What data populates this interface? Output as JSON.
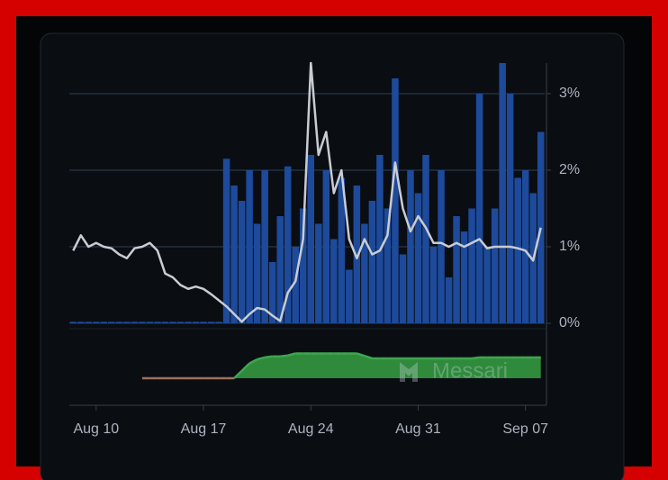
{
  "chart_data": {
    "type": "bar",
    "watermark": "Messari",
    "categories": [
      null,
      null,
      null,
      "Aug 10",
      null,
      null,
      null,
      null,
      null,
      null,
      null,
      null,
      null,
      null,
      null,
      null,
      null,
      "Aug 17",
      null,
      null,
      null,
      null,
      null,
      null,
      null,
      null,
      null,
      null,
      null,
      null,
      null,
      "Aug 24",
      null,
      null,
      null,
      null,
      null,
      null,
      null,
      null,
      null,
      null,
      null,
      null,
      null,
      "Aug 31",
      null,
      null,
      null,
      null,
      null,
      null,
      null,
      null,
      null,
      null,
      null,
      null,
      null,
      "Sep 07",
      null,
      null
    ],
    "ylim": [
      0,
      3.4
    ],
    "yticks": [
      {
        "value": 0,
        "label": "0%"
      },
      {
        "value": 1,
        "label": "1%"
      },
      {
        "value": 2,
        "label": "2%"
      },
      {
        "value": 3,
        "label": "3%"
      }
    ],
    "y2lim": [
      0,
      1
    ],
    "grid": true,
    "series": [
      {
        "type": "bar",
        "color": "#1d4a9b",
        "values": [
          0.02,
          0.02,
          0.02,
          0.02,
          0.02,
          0.02,
          0.02,
          0.02,
          0.02,
          0.02,
          0.02,
          0.02,
          0.02,
          0.02,
          0.02,
          0.02,
          0.02,
          0.02,
          0.02,
          0.02,
          2.15,
          1.8,
          1.6,
          2.0,
          1.3,
          2.0,
          0.8,
          1.4,
          2.05,
          1.0,
          1.5,
          2.2,
          1.3,
          2.0,
          1.1,
          1.9,
          0.7,
          1.8,
          1.3,
          1.6,
          2.2,
          1.5,
          3.2,
          0.9,
          2.0,
          1.7,
          2.2,
          1.0,
          2.0,
          0.6,
          1.4,
          1.2,
          1.5,
          3.0,
          1.0,
          1.5,
          3.4,
          3.0,
          1.9,
          2.0,
          1.7,
          2.5
        ]
      },
      {
        "type": "line",
        "color": "#c9ccd3",
        "values": [
          0.95,
          1.15,
          1.0,
          1.05,
          1.0,
          0.98,
          0.9,
          0.85,
          0.98,
          1.0,
          1.05,
          0.95,
          0.65,
          0.6,
          0.5,
          0.45,
          0.48,
          0.45,
          0.38,
          0.3,
          0.22,
          0.12,
          0.02,
          0.12,
          0.2,
          0.18,
          0.1,
          0.03,
          0.4,
          0.55,
          1.1,
          3.4,
          2.2,
          2.5,
          1.7,
          2.0,
          1.1,
          0.85,
          1.1,
          0.9,
          0.95,
          1.15,
          2.1,
          1.5,
          1.2,
          1.4,
          1.25,
          1.05,
          1.05,
          1.0,
          1.05,
          1.0,
          1.05,
          1.1,
          0.98,
          1.0,
          1.0,
          1.0,
          0.98,
          0.95,
          0.82,
          1.25
        ]
      },
      {
        "type": "area",
        "axis": "y2",
        "color": "#2f8a3c",
        "zero_color": "#a0705a",
        "values": [
          null,
          null,
          null,
          null,
          null,
          null,
          null,
          null,
          null,
          0,
          0,
          0,
          0,
          0,
          0,
          0,
          0,
          0,
          0,
          0,
          0,
          0,
          0.15,
          0.3,
          0.38,
          0.42,
          0.44,
          0.44,
          0.46,
          0.5,
          0.5,
          0.5,
          0.5,
          0.5,
          0.5,
          0.5,
          0.5,
          0.5,
          0.45,
          0.4,
          0.4,
          0.4,
          0.4,
          0.4,
          0.4,
          0.4,
          0.4,
          0.4,
          0.4,
          0.4,
          0.4,
          0.4,
          0.4,
          0.42,
          0.42,
          0.42,
          0.42,
          0.42,
          0.42,
          0.42,
          0.42,
          0.42
        ]
      }
    ]
  }
}
